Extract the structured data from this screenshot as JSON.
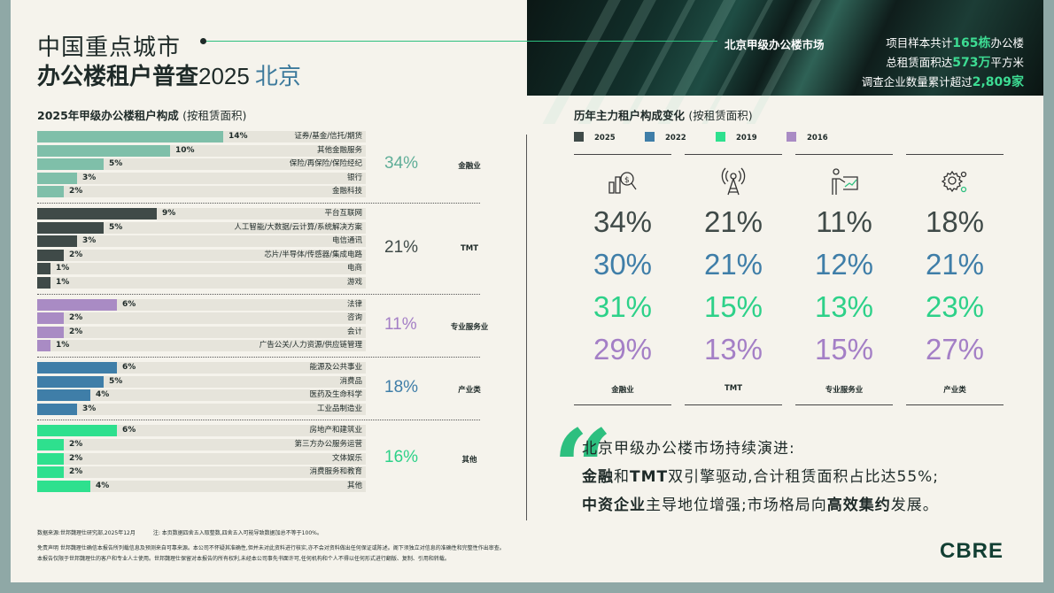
{
  "header": {
    "title_line1": "中国重点城市",
    "title_line2_bold": "办公楼租户普查",
    "title_year": "2025",
    "title_city": "北京",
    "market_label": "北京甲级办公楼市场",
    "stats": [
      {
        "pre": "项目样本共计",
        "value": "165栋",
        "post": "办公楼"
      },
      {
        "pre": "总租赁面积达",
        "value": "573万",
        "post": "平方米"
      },
      {
        "pre": "调查企业数量累计超过",
        "value": "2,809家",
        "post": ""
      }
    ]
  },
  "left": {
    "title": "2025年甲级办公楼租户构成",
    "title_note": "(按租赁面积)",
    "groups": [
      {
        "name": "金融业",
        "total": "34%",
        "color": "#7fbfa9",
        "total_color": "#5fae98",
        "items": [
          {
            "label": "证券/基金/信托/期货",
            "pct": "14%",
            "value": 14
          },
          {
            "label": "其他金融服务",
            "pct": "10%",
            "value": 10
          },
          {
            "label": "保险/再保险/保险经纪",
            "pct": "5%",
            "value": 5
          },
          {
            "label": "银行",
            "pct": "3%",
            "value": 3
          },
          {
            "label": "金融科技",
            "pct": "2%",
            "value": 2
          }
        ]
      },
      {
        "name": "TMT",
        "total": "21%",
        "color": "#3f4a48",
        "total_color": "#3f4a48",
        "items": [
          {
            "label": "平台互联网",
            "pct": "9%",
            "value": 9
          },
          {
            "label": "人工智能/大数据/云计算/系统解决方案",
            "pct": "5%",
            "value": 5
          },
          {
            "label": "电信通讯",
            "pct": "3%",
            "value": 3
          },
          {
            "label": "芯片/半导体/传感器/集成电路",
            "pct": "2%",
            "value": 2
          },
          {
            "label": "电商",
            "pct": "1%",
            "value": 1
          },
          {
            "label": "游戏",
            "pct": "1%",
            "value": 1
          }
        ]
      },
      {
        "name": "专业服务业",
        "total": "11%",
        "color": "#a98bc4",
        "total_color": "#a47fc6",
        "items": [
          {
            "label": "法律",
            "pct": "6%",
            "value": 6
          },
          {
            "label": "咨询",
            "pct": "2%",
            "value": 2
          },
          {
            "label": "会计",
            "pct": "2%",
            "value": 2
          },
          {
            "label": "广告公关/人力资源/供应链管理",
            "pct": "1%",
            "value": 1
          }
        ]
      },
      {
        "name": "产业类",
        "total": "18%",
        "color": "#3f7ea8",
        "total_color": "#3f7ea8",
        "items": [
          {
            "label": "能源及公共事业",
            "pct": "6%",
            "value": 6
          },
          {
            "label": "消费品",
            "pct": "5%",
            "value": 5
          },
          {
            "label": "医药及生命科学",
            "pct": "4%",
            "value": 4
          },
          {
            "label": "工业品制造业",
            "pct": "3%",
            "value": 3
          }
        ]
      },
      {
        "name": "其他",
        "total": "16%",
        "color": "#2ee08e",
        "total_color": "#2dd189",
        "items": [
          {
            "label": "房地产和建筑业",
            "pct": "6%",
            "value": 6
          },
          {
            "label": "第三方办公服务运营",
            "pct": "2%",
            "value": 2
          },
          {
            "label": "文体娱乐",
            "pct": "2%",
            "value": 2
          },
          {
            "label": "消费服务和教育",
            "pct": "2%",
            "value": 2
          },
          {
            "label": "其他",
            "pct": "4%",
            "value": 4
          }
        ]
      }
    ]
  },
  "right": {
    "title": "历年主力租户构成变化",
    "title_note": "(按租赁面积)",
    "legend": [
      {
        "year": "2025",
        "color": "#3f4a48"
      },
      {
        "year": "2022",
        "color": "#3f7ea8"
      },
      {
        "year": "2019",
        "color": "#2ee08e"
      },
      {
        "year": "2016",
        "color": "#a98bc4"
      }
    ],
    "columns": [
      {
        "name": "金融业",
        "icon": "finance-icon",
        "values": [
          "34%",
          "30%",
          "31%",
          "29%"
        ]
      },
      {
        "name": "TMT",
        "icon": "tower-icon",
        "values": [
          "21%",
          "21%",
          "15%",
          "13%"
        ]
      },
      {
        "name": "专业服务业",
        "icon": "professional-icon",
        "values": [
          "11%",
          "12%",
          "13%",
          "15%"
        ]
      },
      {
        "name": "产业类",
        "icon": "gear-icon",
        "values": [
          "18%",
          "21%",
          "23%",
          "27%"
        ]
      }
    ],
    "value_colors": [
      "#3f4a48",
      "#3f7ea8",
      "#2dd189",
      "#a47fc6"
    ]
  },
  "quote": {
    "line1": "北京甲级办公楼市场持续演进:",
    "line2_b1": "金融",
    "line2_t1": "和",
    "line2_b2": "TMT",
    "line2_t2": "双引擎驱动,合计租赁面积占比达55%;",
    "line3_b1": "中资企业",
    "line3_t1": "主导地位增强;市场格局向",
    "line3_b2": "高效集约",
    "line3_t2": "发展。"
  },
  "footer": {
    "source": "数据来源:世邦魏理仕研究部,2025年12月",
    "note": "注: 本页数据四舍五入取整数,四舍五入可能导致数据加总不等于100%。",
    "disclaimer1": "免责声明 世邦魏理仕确信本报告所列载信息及预测来自可靠来源。本公司不怀疑其准确性,但并未对此资料进行核实,亦不会对资料做出任何保证或陈述。阁下须独立对信息的准确性和完整性作出审查。",
    "disclaimer2": "本报告仅限于世邦魏理仕的客户和专业人士使用。世邦魏理仕保留对本报告的所有权利,未经本公司事先书面许可,任何机构和个人不得以任何形式进行翻版、复制、引用和转载。",
    "logo": "CBRE"
  }
}
